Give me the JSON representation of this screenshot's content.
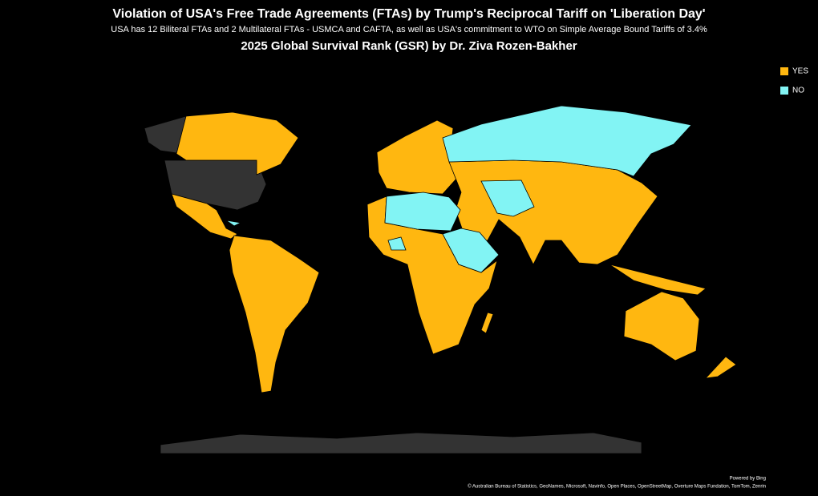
{
  "header": {
    "title": "Violation of USA's Free Trade Agreements (FTAs) by Trump's Reciprocal Tariff on 'Liberation Day'",
    "subtitle": "USA has 12 Biliteral FTAs and 2 Multilateral FTAs - USMCA and CAFTA, as well as USA's commitment to WTO on Simple Average Bound Tariffs of 3.4%",
    "title2": "2025 Global Survival Rank (GSR) by Dr. Ziva Rozen-Bakher"
  },
  "legend": {
    "items": [
      {
        "label": "YES",
        "color": "#ffb710"
      },
      {
        "label": "NO",
        "color": "#82f4f4"
      }
    ]
  },
  "footer": {
    "powered": "Powered by Bing",
    "attribution": "© Australian Bureau of Statistics, GeoNames, Microsoft, Navinfo, Open Places, OpenStreetMap, Overture Maps Fundation, TomTom, Zenrin"
  }
}
